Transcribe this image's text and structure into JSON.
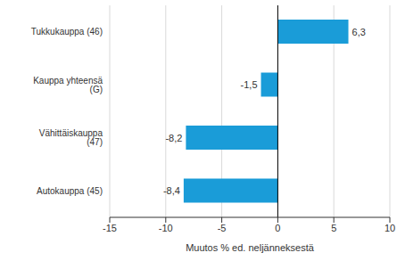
{
  "chart_data": {
    "type": "bar",
    "orientation": "horizontal",
    "categories": [
      "Tukkukauppa (46)",
      "Kauppa yhteensä (G)",
      "Vähittäiskauppa (47)",
      "Autokauppa (45)"
    ],
    "values": [
      6.3,
      -1.5,
      -8.2,
      -8.4
    ],
    "value_labels": [
      "6,3",
      "-1,5",
      "-8,2",
      "-8,4"
    ],
    "data_labels": true,
    "color": "#1a9cd8",
    "xlabel": "Muutos % ed. neljänneksestä",
    "xlim": [
      -15,
      10
    ],
    "xticks": [
      -15,
      -10,
      -5,
      0,
      5,
      10
    ],
    "grid": true
  }
}
